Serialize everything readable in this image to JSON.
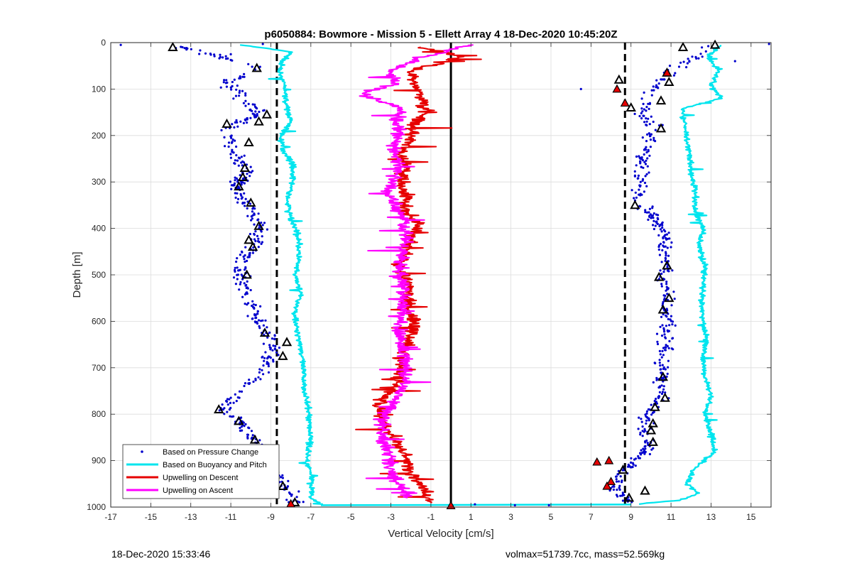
{
  "chart_data": {
    "type": "scatter",
    "title": "p6050884: Bowmore - Mission 5 - Ellett Array 4 18-Dec-2020 10:45:20Z",
    "xlabel": "Vertical Velocity [cm/s]",
    "ylabel": "Depth [m]",
    "xlim": [
      -17,
      16
    ],
    "ylim": [
      0,
      1000
    ],
    "y_reversed": true,
    "grid": true,
    "legend_position": "bottom-left",
    "xticks": [
      -17,
      -15,
      -13,
      -11,
      -9,
      -7,
      -5,
      -3,
      -1,
      1,
      3,
      5,
      7,
      9,
      11,
      13,
      15
    ],
    "yticks": [
      0,
      100,
      200,
      300,
      400,
      500,
      600,
      700,
      800,
      900,
      1000
    ],
    "series": [
      {
        "name": "Based on Pressure Change",
        "style": "dots",
        "color": "#0000cd",
        "left_profile": [
          {
            "depth": 5,
            "x": -13.9
          },
          {
            "depth": 30,
            "x": -11.6
          },
          {
            "depth": 50,
            "x": -9.9
          },
          {
            "depth": 70,
            "x": -10.4
          },
          {
            "depth": 90,
            "x": -11.2
          },
          {
            "depth": 110,
            "x": -10.7
          },
          {
            "depth": 130,
            "x": -10.2
          },
          {
            "depth": 150,
            "x": -9.6
          },
          {
            "depth": 170,
            "x": -10.4
          },
          {
            "depth": 190,
            "x": -11.2
          },
          {
            "depth": 220,
            "x": -11.0
          },
          {
            "depth": 250,
            "x": -10.8
          },
          {
            "depth": 280,
            "x": -10.2
          },
          {
            "depth": 310,
            "x": -10.8
          },
          {
            "depth": 340,
            "x": -10.3
          },
          {
            "depth": 370,
            "x": -9.8
          },
          {
            "depth": 400,
            "x": -9.6
          },
          {
            "depth": 430,
            "x": -9.8
          },
          {
            "depth": 460,
            "x": -10.2
          },
          {
            "depth": 490,
            "x": -10.5
          },
          {
            "depth": 520,
            "x": -10.3
          },
          {
            "depth": 550,
            "x": -10.1
          },
          {
            "depth": 580,
            "x": -9.8
          },
          {
            "depth": 610,
            "x": -9.5
          },
          {
            "depth": 640,
            "x": -8.8
          },
          {
            "depth": 670,
            "x": -9.0
          },
          {
            "depth": 700,
            "x": -9.3
          },
          {
            "depth": 730,
            "x": -10.0
          },
          {
            "depth": 760,
            "x": -10.8
          },
          {
            "depth": 790,
            "x": -11.3
          },
          {
            "depth": 820,
            "x": -10.5
          },
          {
            "depth": 850,
            "x": -9.9
          },
          {
            "depth": 880,
            "x": -9.5
          },
          {
            "depth": 910,
            "x": -9.0
          },
          {
            "depth": 940,
            "x": -8.6
          },
          {
            "depth": 970,
            "x": -8.0
          },
          {
            "depth": 990,
            "x": -7.8
          }
        ],
        "right_profile": [
          {
            "depth": 5,
            "x": 13.0
          },
          {
            "depth": 30,
            "x": 12.3
          },
          {
            "depth": 60,
            "x": 11.0
          },
          {
            "depth": 90,
            "x": 10.4
          },
          {
            "depth": 120,
            "x": 9.8
          },
          {
            "depth": 150,
            "x": 9.5
          },
          {
            "depth": 180,
            "x": 10.1
          },
          {
            "depth": 210,
            "x": 10.0
          },
          {
            "depth": 240,
            "x": 9.7
          },
          {
            "depth": 270,
            "x": 9.5
          },
          {
            "depth": 300,
            "x": 9.4
          },
          {
            "depth": 330,
            "x": 9.3
          },
          {
            "depth": 360,
            "x": 9.8
          },
          {
            "depth": 390,
            "x": 10.4
          },
          {
            "depth": 420,
            "x": 10.8
          },
          {
            "depth": 450,
            "x": 10.7
          },
          {
            "depth": 480,
            "x": 10.8
          },
          {
            "depth": 510,
            "x": 10.5
          },
          {
            "depth": 540,
            "x": 10.9
          },
          {
            "depth": 570,
            "x": 10.7
          },
          {
            "depth": 600,
            "x": 10.9
          },
          {
            "depth": 630,
            "x": 10.7
          },
          {
            "depth": 660,
            "x": 10.7
          },
          {
            "depth": 690,
            "x": 10.5
          },
          {
            "depth": 720,
            "x": 10.6
          },
          {
            "depth": 750,
            "x": 10.6
          },
          {
            "depth": 780,
            "x": 10.2
          },
          {
            "depth": 810,
            "x": 9.8
          },
          {
            "depth": 840,
            "x": 9.7
          },
          {
            "depth": 870,
            "x": 9.9
          },
          {
            "depth": 900,
            "x": 9.2
          },
          {
            "depth": 930,
            "x": 8.5
          },
          {
            "depth": 960,
            "x": 8.2
          },
          {
            "depth": 990,
            "x": 8.9
          }
        ]
      },
      {
        "name": "Based on Buoyancy and Pitch",
        "style": "line",
        "color": "#00e5ee",
        "left_profile": [
          {
            "depth": 5,
            "x": -10.5
          },
          {
            "depth": 20,
            "x": -8.0
          },
          {
            "depth": 40,
            "x": -8.4
          },
          {
            "depth": 60,
            "x": -8.6
          },
          {
            "depth": 100,
            "x": -8.3
          },
          {
            "depth": 140,
            "x": -8.2
          },
          {
            "depth": 170,
            "x": -8.0
          },
          {
            "depth": 200,
            "x": -8.5
          },
          {
            "depth": 230,
            "x": -8.4
          },
          {
            "depth": 260,
            "x": -7.9
          },
          {
            "depth": 300,
            "x": -7.9
          },
          {
            "depth": 340,
            "x": -8.2
          },
          {
            "depth": 380,
            "x": -8.0
          },
          {
            "depth": 420,
            "x": -7.6
          },
          {
            "depth": 460,
            "x": -7.6
          },
          {
            "depth": 500,
            "x": -7.8
          },
          {
            "depth": 540,
            "x": -7.5
          },
          {
            "depth": 580,
            "x": -7.8
          },
          {
            "depth": 620,
            "x": -7.7
          },
          {
            "depth": 650,
            "x": -7.5
          },
          {
            "depth": 700,
            "x": -7.4
          },
          {
            "depth": 750,
            "x": -7.3
          },
          {
            "depth": 800,
            "x": -7.1
          },
          {
            "depth": 850,
            "x": -7.0
          },
          {
            "depth": 900,
            "x": -7.2
          },
          {
            "depth": 940,
            "x": -6.9
          },
          {
            "depth": 980,
            "x": -7.0
          },
          {
            "depth": 995,
            "x": -6.5
          }
        ],
        "bottom_crossing": {
          "depth": 996,
          "from_x": -6.5,
          "to_x": 9.0
        },
        "right_profile": [
          {
            "depth": 995,
            "x": 9.0
          },
          {
            "depth": 985,
            "x": 11.5
          },
          {
            "depth": 970,
            "x": 12.4
          },
          {
            "depth": 950,
            "x": 11.8
          },
          {
            "depth": 920,
            "x": 12.1
          },
          {
            "depth": 880,
            "x": 13.2
          },
          {
            "depth": 840,
            "x": 13.0
          },
          {
            "depth": 800,
            "x": 12.7
          },
          {
            "depth": 760,
            "x": 13.0
          },
          {
            "depth": 720,
            "x": 12.7
          },
          {
            "depth": 680,
            "x": 12.6
          },
          {
            "depth": 640,
            "x": 12.8
          },
          {
            "depth": 600,
            "x": 12.6
          },
          {
            "depth": 560,
            "x": 12.5
          },
          {
            "depth": 520,
            "x": 12.6
          },
          {
            "depth": 480,
            "x": 12.7
          },
          {
            "depth": 440,
            "x": 12.4
          },
          {
            "depth": 400,
            "x": 12.6
          },
          {
            "depth": 360,
            "x": 12.2
          },
          {
            "depth": 320,
            "x": 12.2
          },
          {
            "depth": 280,
            "x": 12.0
          },
          {
            "depth": 240,
            "x": 11.9
          },
          {
            "depth": 200,
            "x": 11.8
          },
          {
            "depth": 160,
            "x": 11.6
          },
          {
            "depth": 140,
            "x": 11.7
          },
          {
            "depth": 120,
            "x": 13.5
          },
          {
            "depth": 90,
            "x": 13.0
          },
          {
            "depth": 60,
            "x": 13.4
          },
          {
            "depth": 30,
            "x": 12.8
          },
          {
            "depth": 5,
            "x": 13.5
          }
        ]
      },
      {
        "name": "Upwelling on Descent",
        "style": "line",
        "color": "#e60000",
        "profile": [
          {
            "depth": 10,
            "x": -1.6
          },
          {
            "depth": 30,
            "x": 0.6
          },
          {
            "depth": 60,
            "x": -2.0
          },
          {
            "depth": 90,
            "x": -1.8
          },
          {
            "depth": 120,
            "x": -1.5
          },
          {
            "depth": 150,
            "x": -1.2
          },
          {
            "depth": 180,
            "x": -2.0
          },
          {
            "depth": 210,
            "x": -2.0
          },
          {
            "depth": 240,
            "x": -2.5
          },
          {
            "depth": 270,
            "x": -2.2
          },
          {
            "depth": 300,
            "x": -2.5
          },
          {
            "depth": 330,
            "x": -2.2
          },
          {
            "depth": 360,
            "x": -2.3
          },
          {
            "depth": 390,
            "x": -1.6
          },
          {
            "depth": 420,
            "x": -2.0
          },
          {
            "depth": 450,
            "x": -2.2
          },
          {
            "depth": 480,
            "x": -2.6
          },
          {
            "depth": 510,
            "x": -2.3
          },
          {
            "depth": 540,
            "x": -2.0
          },
          {
            "depth": 570,
            "x": -2.2
          },
          {
            "depth": 600,
            "x": -1.8
          },
          {
            "depth": 630,
            "x": -2.0
          },
          {
            "depth": 660,
            "x": -2.3
          },
          {
            "depth": 690,
            "x": -2.5
          },
          {
            "depth": 720,
            "x": -2.6
          },
          {
            "depth": 750,
            "x": -3.0
          },
          {
            "depth": 780,
            "x": -3.6
          },
          {
            "depth": 810,
            "x": -3.4
          },
          {
            "depth": 840,
            "x": -3.2
          },
          {
            "depth": 870,
            "x": -2.5
          },
          {
            "depth": 900,
            "x": -2.2
          },
          {
            "depth": 930,
            "x": -2.0
          },
          {
            "depth": 960,
            "x": -1.4
          },
          {
            "depth": 990,
            "x": -1.0
          }
        ]
      },
      {
        "name": "Upwelling on Ascent",
        "style": "line",
        "color": "#ff00ff",
        "profile": [
          {
            "depth": 5,
            "x": 1.0
          },
          {
            "depth": 30,
            "x": -1.2
          },
          {
            "depth": 60,
            "x": -3.0
          },
          {
            "depth": 90,
            "x": -2.8
          },
          {
            "depth": 110,
            "x": -4.5
          },
          {
            "depth": 140,
            "x": -2.4
          },
          {
            "depth": 170,
            "x": -2.8
          },
          {
            "depth": 200,
            "x": -2.6
          },
          {
            "depth": 230,
            "x": -2.9
          },
          {
            "depth": 260,
            "x": -2.6
          },
          {
            "depth": 290,
            "x": -2.8
          },
          {
            "depth": 320,
            "x": -3.2
          },
          {
            "depth": 350,
            "x": -2.7
          },
          {
            "depth": 380,
            "x": -2.4
          },
          {
            "depth": 410,
            "x": -2.2
          },
          {
            "depth": 440,
            "x": -2.4
          },
          {
            "depth": 470,
            "x": -2.5
          },
          {
            "depth": 500,
            "x": -2.6
          },
          {
            "depth": 530,
            "x": -2.3
          },
          {
            "depth": 560,
            "x": -2.4
          },
          {
            "depth": 590,
            "x": -2.5
          },
          {
            "depth": 620,
            "x": -2.6
          },
          {
            "depth": 650,
            "x": -2.5
          },
          {
            "depth": 680,
            "x": -2.3
          },
          {
            "depth": 710,
            "x": -2.2
          },
          {
            "depth": 740,
            "x": -2.4
          },
          {
            "depth": 770,
            "x": -2.8
          },
          {
            "depth": 800,
            "x": -3.3
          },
          {
            "depth": 830,
            "x": -3.5
          },
          {
            "depth": 860,
            "x": -3.4
          },
          {
            "depth": 890,
            "x": -3.0
          },
          {
            "depth": 920,
            "x": -3.1
          },
          {
            "depth": 950,
            "x": -2.6
          },
          {
            "depth": 980,
            "x": -2.0
          }
        ]
      }
    ],
    "reference_lines": [
      {
        "style": "dashed",
        "color": "#000000",
        "x": -8.7
      },
      {
        "style": "dashed",
        "color": "#000000",
        "x": 8.7
      },
      {
        "style": "solid",
        "color": "#000000",
        "x": 0.0
      }
    ],
    "markers_open_triangle": [
      {
        "x": -13.9,
        "depth": 10
      },
      {
        "x": -9.7,
        "depth": 55
      },
      {
        "x": -9.2,
        "depth": 155
      },
      {
        "x": -9.6,
        "depth": 170
      },
      {
        "x": -11.2,
        "depth": 175
      },
      {
        "x": -10.1,
        "depth": 215
      },
      {
        "x": -10.3,
        "depth": 270
      },
      {
        "x": -10.4,
        "depth": 290
      },
      {
        "x": -10.6,
        "depth": 310
      },
      {
        "x": -10.0,
        "depth": 345
      },
      {
        "x": -9.6,
        "depth": 395
      },
      {
        "x": -10.1,
        "depth": 425
      },
      {
        "x": -9.9,
        "depth": 440
      },
      {
        "x": -10.2,
        "depth": 500
      },
      {
        "x": -9.3,
        "depth": 625
      },
      {
        "x": -8.2,
        "depth": 645
      },
      {
        "x": -8.4,
        "depth": 675
      },
      {
        "x": -11.6,
        "depth": 790
      },
      {
        "x": -10.6,
        "depth": 815
      },
      {
        "x": -9.8,
        "depth": 855
      },
      {
        "x": -8.8,
        "depth": 930
      },
      {
        "x": -8.4,
        "depth": 955
      },
      {
        "x": -7.8,
        "depth": 990
      },
      {
        "x": 13.2,
        "depth": 5
      },
      {
        "x": 11.6,
        "depth": 10
      },
      {
        "x": 10.8,
        "depth": 65
      },
      {
        "x": 10.9,
        "depth": 85
      },
      {
        "x": 8.4,
        "depth": 80
      },
      {
        "x": 10.5,
        "depth": 125
      },
      {
        "x": 9.0,
        "depth": 140
      },
      {
        "x": 10.5,
        "depth": 185
      },
      {
        "x": 9.2,
        "depth": 350
      },
      {
        "x": 10.8,
        "depth": 480
      },
      {
        "x": 10.4,
        "depth": 505
      },
      {
        "x": 10.9,
        "depth": 550
      },
      {
        "x": 10.6,
        "depth": 575
      },
      {
        "x": 10.6,
        "depth": 720
      },
      {
        "x": 10.7,
        "depth": 765
      },
      {
        "x": 10.2,
        "depth": 785
      },
      {
        "x": 10.1,
        "depth": 820
      },
      {
        "x": 10.0,
        "depth": 835
      },
      {
        "x": 10.1,
        "depth": 860
      },
      {
        "x": 8.6,
        "depth": 920
      },
      {
        "x": 9.7,
        "depth": 965
      },
      {
        "x": 8.9,
        "depth": 980
      }
    ],
    "markers_filled_triangle": [
      {
        "x": 8.7,
        "depth": 130
      },
      {
        "x": 8.3,
        "depth": 100
      },
      {
        "x": 10.8,
        "depth": 65
      },
      {
        "x": 7.3,
        "depth": 903
      },
      {
        "x": 7.9,
        "depth": 900
      },
      {
        "x": 8.0,
        "depth": 945
      },
      {
        "x": 7.8,
        "depth": 955
      },
      {
        "x": 0.0,
        "depth": 997
      },
      {
        "x": -8.0,
        "depth": 993
      }
    ]
  },
  "footer": {
    "left": "18-Dec-2020 15:33:46",
    "right": "volmax=51739.7cc, mass=52.569kg"
  }
}
